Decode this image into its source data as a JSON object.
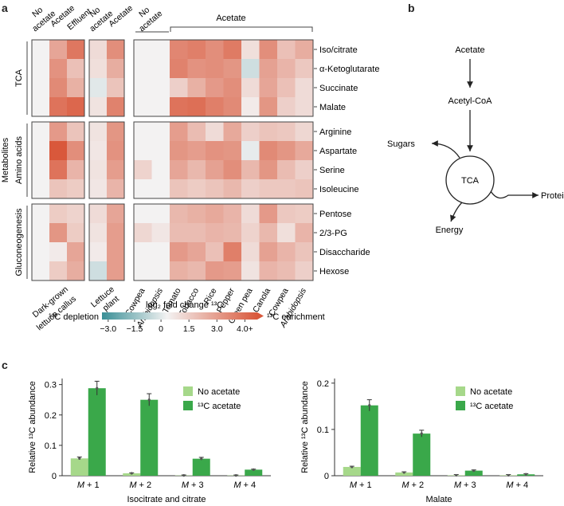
{
  "panels": {
    "a": "a",
    "b": "b",
    "c": "c"
  },
  "heatmap": {
    "top_labels": {
      "left": [
        "No acetate",
        "Acetate",
        "Effluent"
      ],
      "middle": [
        "No acetate",
        "Acetate"
      ],
      "right_no": "No acetate",
      "right_acetate": "Acetate"
    },
    "groups": [
      "TCA",
      "Amino acids",
      "Gluconeogenesis"
    ],
    "metabolites_label": "Metabolites",
    "rows": [
      "Iso/citrate",
      "α-Ketoglutarate",
      "Succinate",
      "Malate",
      "Arginine",
      "Aspartate",
      "Serine",
      "Isoleucine",
      "Pentose",
      "2/3-PG",
      "Disaccharide",
      "Hexose"
    ],
    "bottom_labels": {
      "left": "Dark-grown lettuce callus",
      "middle": "Lettuce plant",
      "right": [
        "Cowpea",
        "Arabidopsis",
        "Tomato",
        "Tobacco",
        "Rice",
        "Pepper",
        "Green pea",
        "Canola",
        "Cowpea",
        "Arabidopsis"
      ]
    },
    "values_left": [
      [
        0,
        2.0,
        3.2
      ],
      [
        0,
        2.5,
        1.3
      ],
      [
        0,
        2.7,
        1.7
      ],
      [
        0,
        3.3,
        3.6
      ],
      [
        0,
        2.3,
        1.2
      ],
      [
        0,
        5.0,
        2.6
      ],
      [
        0,
        3.3,
        1.6
      ],
      [
        0,
        1.2,
        1.0
      ],
      [
        0,
        1.0,
        0.8
      ],
      [
        0,
        2.4,
        1.0
      ],
      [
        0,
        0.2,
        2.0
      ],
      [
        0,
        1.0,
        1.8
      ]
    ],
    "values_middle": [
      [
        0.6,
        2.6
      ],
      [
        0.5,
        1.8
      ],
      [
        -0.3,
        1.2
      ],
      [
        0.4,
        2.9
      ],
      [
        0.4,
        2.4
      ],
      [
        0.3,
        2.5
      ],
      [
        0.4,
        2.2
      ],
      [
        0.3,
        1.6
      ],
      [
        0.6,
        2.0
      ],
      [
        0.4,
        2.2
      ],
      [
        0.2,
        2.2
      ],
      [
        -0.6,
        2.2
      ]
    ],
    "values_right": [
      [
        0,
        0,
        2.8,
        3.0,
        2.6,
        3.1,
        0.5,
        2.6,
        1.3,
        1.8
      ],
      [
        0,
        0,
        2.9,
        2.5,
        2.6,
        2.4,
        -0.6,
        2.1,
        1.6,
        1.1
      ],
      [
        0,
        0,
        0.9,
        1.7,
        2.3,
        2.6,
        0.6,
        2.0,
        1.3,
        0.6
      ],
      [
        0,
        0,
        3.3,
        3.4,
        3.0,
        2.7,
        0.2,
        2.4,
        0.9,
        0.6
      ],
      [
        0,
        0,
        2.2,
        1.4,
        0.6,
        1.9,
        0.9,
        1.2,
        1.1,
        0.7
      ],
      [
        0,
        0,
        2.4,
        2.2,
        2.5,
        2.4,
        -0.2,
        2.7,
        2.4,
        1.9
      ],
      [
        0.8,
        0,
        2.0,
        1.5,
        2.1,
        2.6,
        1.5,
        2.4,
        1.4,
        0.9
      ],
      [
        0,
        0,
        1.2,
        1.0,
        1.2,
        1.5,
        0.9,
        1.1,
        1.1,
        1.2
      ],
      [
        0,
        0,
        1.5,
        1.7,
        1.9,
        1.6,
        0.6,
        2.3,
        1.1,
        1.0
      ],
      [
        0.7,
        0.3,
        1.4,
        1.4,
        1.6,
        1.5,
        0.8,
        1.5,
        0.5,
        1.6
      ],
      [
        0,
        0,
        2.3,
        2.0,
        1.3,
        3.0,
        0.6,
        2.1,
        1.6,
        1.2
      ],
      [
        0,
        0,
        1.7,
        1.5,
        2.3,
        2.2,
        0.4,
        1.6,
        1.4,
        0.9
      ]
    ],
    "colorbar": {
      "title": "log₂ fold change ¹³C",
      "ticks": [
        "−3.0",
        "−1.5",
        "0",
        "1.5",
        "3.0",
        "4.0+"
      ],
      "left_label": "¹³C depletion",
      "right_label": "¹³C enrichment",
      "neg_color": "#3a8f96",
      "pos_color": "#d9583b"
    }
  },
  "diagram": {
    "acetate": "Acetate",
    "acetyl_coa": "Acetyl-CoA",
    "sugars": "Sugars",
    "tca": "TCA",
    "protein": "Protein",
    "energy": "Energy"
  },
  "chart_data": [
    {
      "type": "bar",
      "title": "Isocitrate and citrate",
      "ylabel": "Relative ¹³C abundance",
      "categories": [
        "M + 1",
        "M + 2",
        "M + 3",
        "M + 4"
      ],
      "ylim": [
        0,
        0.32
      ],
      "yticks": [
        "0",
        "0.1",
        "0.2",
        "0.3"
      ],
      "series": [
        {
          "name": "No acetate",
          "values": [
            0.057,
            0.008,
            0.001,
            0.001
          ],
          "color": "#a6d88a"
        },
        {
          "name": "¹³C acetate",
          "values": [
            0.288,
            0.25,
            0.056,
            0.02
          ],
          "color": "#3aa84a"
        }
      ]
    },
    {
      "type": "bar",
      "title": "Malate",
      "ylabel": "Relative ¹³C abundance",
      "categories": [
        "M + 1",
        "M + 2",
        "M + 3",
        "M + 4"
      ],
      "ylim": [
        0,
        0.21
      ],
      "yticks": [
        "0",
        "0.1",
        "0.2"
      ],
      "series": [
        {
          "name": "No acetate",
          "values": [
            0.019,
            0.007,
            0.001,
            0.001
          ],
          "color": "#a6d88a"
        },
        {
          "name": "¹³C acetate",
          "values": [
            0.152,
            0.091,
            0.011,
            0.003
          ],
          "color": "#3aa84a"
        }
      ]
    }
  ]
}
